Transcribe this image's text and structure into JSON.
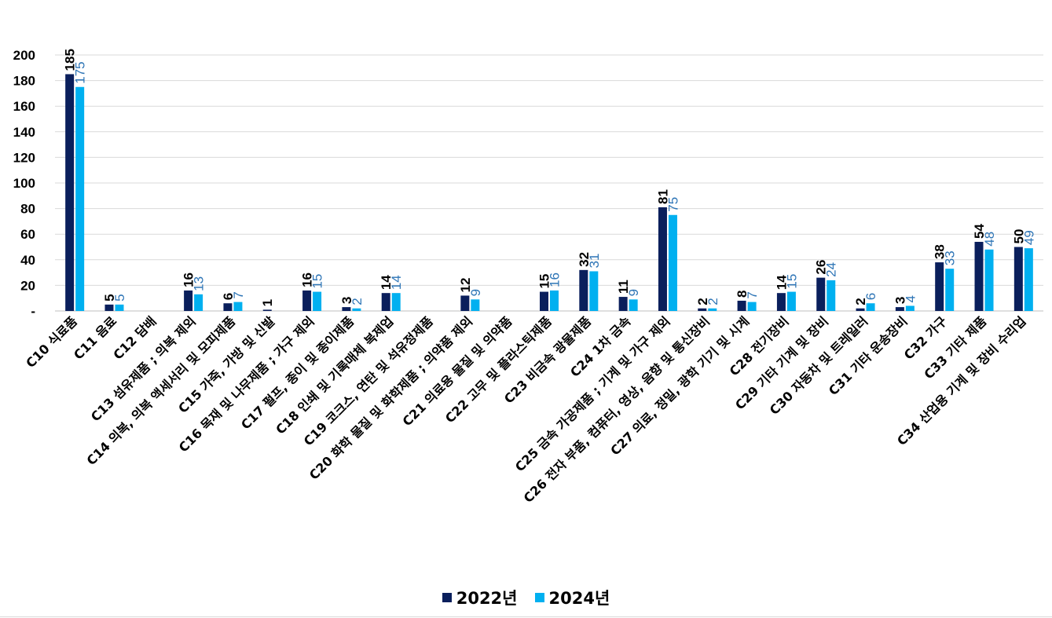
{
  "chart_data": {
    "type": "bar",
    "title": "",
    "xlabel": "",
    "ylabel": "",
    "ylim": [
      0,
      200
    ],
    "yticks": [
      "-",
      "20",
      "40",
      "60",
      "80",
      "100",
      "120",
      "140",
      "160",
      "180",
      "200"
    ],
    "grid": true,
    "legend_position": "bottom",
    "categories": [
      "C10 식료품",
      "C11 음료",
      "C12 담배",
      "C13 섬유제품 ; 의복 제외",
      "C14 의복, 의복 액세서리 및 모피제품",
      "C15 가죽, 가방 및 신발",
      "C16 목재 및 나무제품 ; 가구 제외",
      "C17 펄프, 종이 및 종이제품",
      "C18 인쇄 및 기록매체 복제업",
      "C19 코크스, 연탄 및 석유정제품",
      "C20 화학 물질 및 화학제품 ; 의약품 제외",
      "C21 의료용 물질 및 의약품",
      "C22 고무 및 플라스틱제품",
      "C23 비금속 광물제품",
      "C24 1차 금속",
      "C25 금속 가공제품 ; 기계 및 가구 제외",
      "C26 전자 부품, 컴퓨터, 영상, 음향 및 통신장비",
      "C27 의료, 정밀, 광학 기기 및 시계",
      "C28 전기장비",
      "C29 기타 기계 및 장비",
      "C30 자동차 및 트레일러",
      "C31 기타 운송장비",
      "C32 가구",
      "C33 기타 제품",
      "C34 산업용 기계 및 장비 수리업"
    ],
    "series": [
      {
        "name": "2022년",
        "color": "#0a1f5c",
        "values": [
          185,
          5,
          null,
          16,
          6,
          1,
          16,
          3,
          14,
          null,
          12,
          null,
          15,
          32,
          11,
          81,
          2,
          8,
          14,
          26,
          2,
          3,
          38,
          54,
          50
        ]
      },
      {
        "name": "2024년",
        "color": "#00b0f0",
        "values": [
          175,
          5,
          null,
          13,
          7,
          null,
          15,
          2,
          14,
          null,
          9,
          null,
          16,
          31,
          9,
          75,
          2,
          7,
          15,
          24,
          6,
          4,
          33,
          48,
          49
        ]
      }
    ],
    "label_colors": {
      "series_1": "#000000",
      "series_2": "#2e75b6"
    }
  }
}
